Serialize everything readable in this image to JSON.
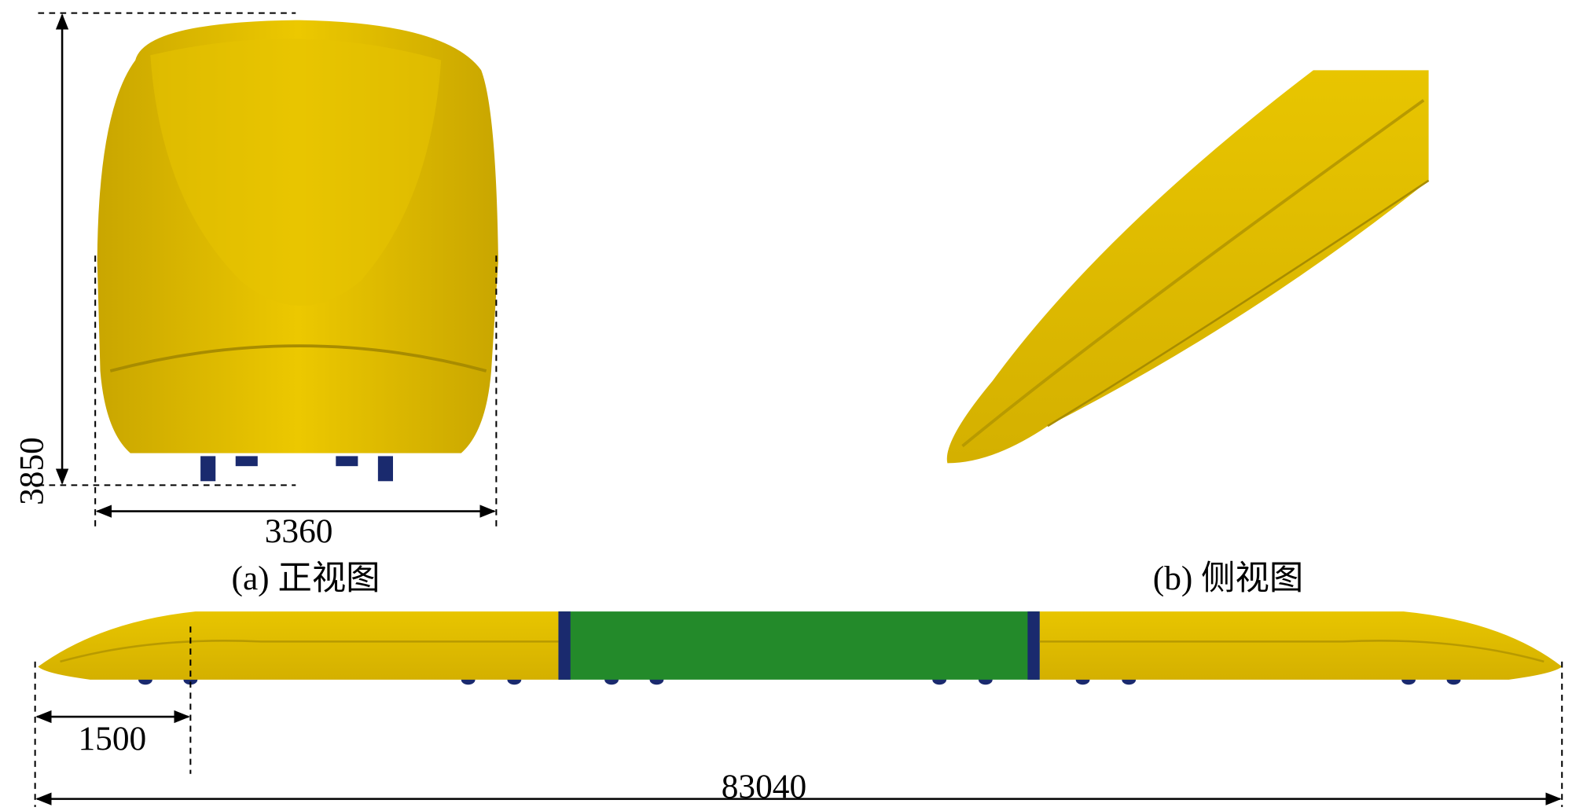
{
  "front_view": {
    "height": 3850,
    "width": 3360,
    "caption": "(a) 正视图"
  },
  "side_view": {
    "caption": "(b) 侧视图"
  },
  "full_view": {
    "nose_length": 1500,
    "total_length": 83040
  }
}
